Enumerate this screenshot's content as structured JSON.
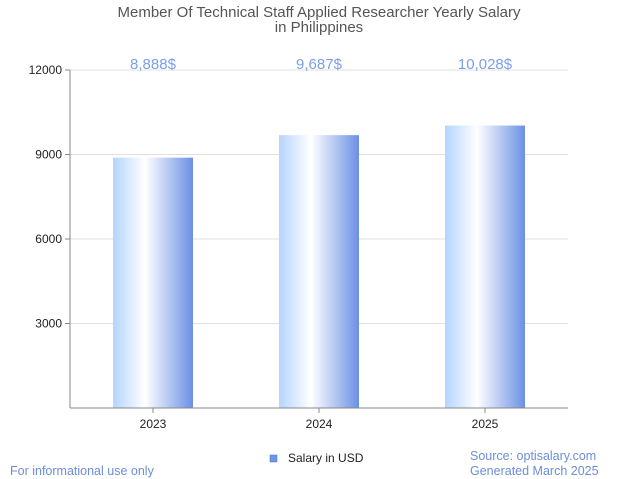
{
  "chart_data": {
    "type": "bar",
    "title": "Member Of Technical Staff Applied Researcher Yearly Salary in Philippines",
    "title_lines": [
      "Member Of Technical Staff Applied Researcher Yearly Salary",
      "in Philippines"
    ],
    "categories": [
      "2023",
      "2024",
      "2025"
    ],
    "values": [
      8888,
      9687,
      10028
    ],
    "data_labels": [
      "8,888$",
      "9,687$",
      "10,028$"
    ],
    "series": [
      {
        "name": "Salary in USD",
        "values": [
          8888,
          9687,
          10028
        ]
      }
    ],
    "ylim": [
      0,
      12000
    ],
    "yticks": [
      3000,
      6000,
      9000,
      12000
    ],
    "xlabel": "",
    "ylabel": "",
    "grid": true,
    "legend_position": "bottom-center"
  },
  "footer": {
    "disclaimer": "For informational use only",
    "source": "Source: optisalary.com",
    "generated": "Generated March 2025"
  },
  "colors": {
    "bar_light": "#ffffff",
    "bar_mid": "#b9d5ff",
    "bar_dark": "#6f95e6",
    "label": "#7aa0e6",
    "grid": "#e0e0e0",
    "axis": "#888888"
  }
}
